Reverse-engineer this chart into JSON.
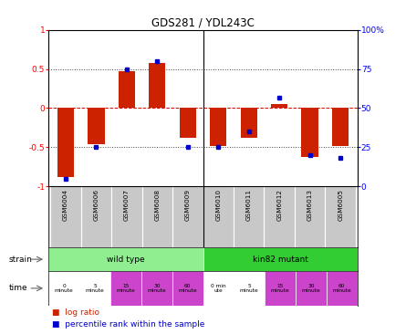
{
  "title": "GDS281 / YDL243C",
  "samples": [
    "GSM6004",
    "GSM6006",
    "GSM6007",
    "GSM6008",
    "GSM6009",
    "GSM6010",
    "GSM6011",
    "GSM6012",
    "GSM6013",
    "GSM6005"
  ],
  "log_ratio": [
    -0.88,
    -0.46,
    0.47,
    0.58,
    -0.38,
    -0.49,
    -0.38,
    0.05,
    -0.62,
    -0.49
  ],
  "percentile_rank": [
    5,
    25,
    75,
    80,
    25,
    25,
    35,
    57,
    20,
    18
  ],
  "strain_colors": [
    "#90EE90",
    "#32CD32"
  ],
  "time_labels": [
    "0\nminute",
    "5\nminute",
    "15\nminute",
    "30\nminute",
    "60\nminute",
    "0 min\nute",
    "5\nminute",
    "15\nminute",
    "30\nminute",
    "60\nminute"
  ],
  "time_colors": [
    "#ffffff",
    "#ffffff",
    "#CC44CC",
    "#CC44CC",
    "#CC44CC",
    "#ffffff",
    "#ffffff",
    "#CC44CC",
    "#CC44CC",
    "#CC44CC"
  ],
  "bar_color": "#CC2200",
  "dot_color": "#0000CC",
  "ylim": [
    -1,
    1
  ],
  "y2lim": [
    0,
    100
  ],
  "yticks": [
    -1,
    -0.5,
    0,
    0.5,
    1
  ],
  "y2ticks": [
    0,
    25,
    50,
    75,
    100
  ],
  "sample_bg": "#C8C8C8",
  "bg_color": "#ffffff"
}
